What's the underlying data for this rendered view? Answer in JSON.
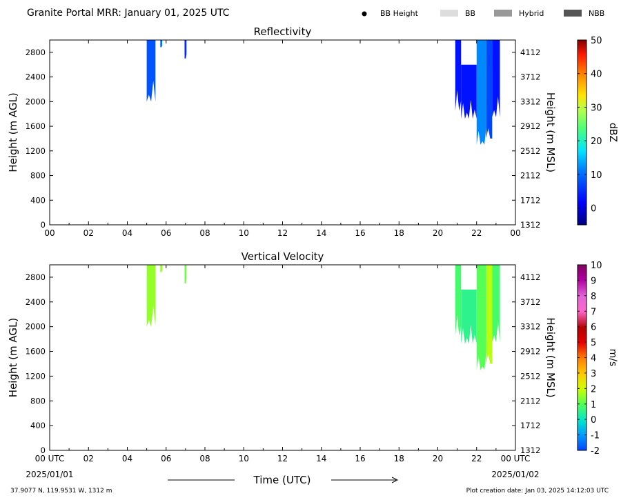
{
  "page_title": "Granite Portal MRR:  January 01, 2025 UTC",
  "legend": [
    {
      "label": "BB Height",
      "kind": "dot",
      "color": "#000000"
    },
    {
      "label": "BB",
      "kind": "swatch",
      "color": "#dddddd"
    },
    {
      "label": "Hybrid",
      "kind": "swatch",
      "color": "#999999"
    },
    {
      "label": "NBB",
      "kind": "swatch",
      "color": "#555555"
    }
  ],
  "footer": {
    "location": "37.9077 N, 119.9531 W, 1312 m",
    "creation": "Plot creation date: Jan 03, 2025 14:12:03 UTC",
    "xlabel": "Time (UTC)",
    "start_date": "2025/01/01",
    "end_date": "2025/01/02"
  },
  "chart_data": [
    {
      "type": "heatmap",
      "title": "Reflectivity",
      "ylabel": "Height (m AGL)",
      "ylabel_right": "Height (m MSL)",
      "x_ticks": [
        "00",
        "02",
        "04",
        "06",
        "08",
        "10",
        "12",
        "14",
        "16",
        "18",
        "20",
        "22",
        "00"
      ],
      "xlim_hours": [
        0,
        24
      ],
      "y_ticks": [
        0,
        400,
        800,
        1200,
        1600,
        2000,
        2400,
        2800
      ],
      "y_ticks_right": [
        1312,
        1712,
        2112,
        2512,
        2912,
        3312,
        3712,
        4112
      ],
      "ylim": [
        0,
        3000
      ],
      "colorbar": {
        "label": "dBZ",
        "ticks": [
          "50",
          "40",
          "30",
          "20",
          "10",
          "0"
        ],
        "range": [
          -5,
          50
        ]
      },
      "echo_regions": [
        {
          "start_hour": 5.0,
          "end_hour": 5.45,
          "bottom_m": 2000,
          "top_m": 3000,
          "value": 8
        },
        {
          "start_hour": 5.7,
          "end_hour": 5.8,
          "bottom_m": 2880,
          "top_m": 3000,
          "value": 10
        },
        {
          "start_hour": 6.95,
          "end_hour": 7.05,
          "bottom_m": 2700,
          "top_m": 3000,
          "value": 5
        },
        {
          "start_hour": 20.9,
          "end_hour": 21.2,
          "bottom_m": 1850,
          "top_m": 3000,
          "value": 3
        },
        {
          "start_hour": 21.2,
          "end_hour": 22.0,
          "bottom_m": 1720,
          "top_m": 2600,
          "value": 3
        },
        {
          "start_hour": 22.0,
          "end_hour": 22.5,
          "bottom_m": 1300,
          "top_m": 3000,
          "value": 12
        },
        {
          "start_hour": 22.5,
          "end_hour": 22.8,
          "bottom_m": 1400,
          "top_m": 3000,
          "value": 7
        },
        {
          "start_hour": 22.8,
          "end_hour": 23.2,
          "bottom_m": 1750,
          "top_m": 3000,
          "value": 3
        }
      ]
    },
    {
      "type": "heatmap",
      "title": "Vertical Velocity",
      "ylabel": "Height (m AGL)",
      "ylabel_right": "Height (m MSL)",
      "x_ticks": [
        "00 UTC",
        "02",
        "04",
        "06",
        "08",
        "10",
        "12",
        "14",
        "16",
        "18",
        "20",
        "22",
        "00 UTC"
      ],
      "xlim_hours": [
        0,
        24
      ],
      "y_ticks": [
        0,
        400,
        800,
        1200,
        1600,
        2000,
        2400,
        2800
      ],
      "y_ticks_right": [
        1312,
        1712,
        2112,
        2512,
        2912,
        3312,
        3712,
        4112
      ],
      "ylim": [
        0,
        3000
      ],
      "colorbar": {
        "label": "m/s",
        "ticks": [
          "10",
          "9",
          "8",
          "7",
          "6",
          "5",
          "4",
          "3",
          "2",
          "1",
          "0",
          "-1",
          "-2"
        ],
        "range": [
          -2,
          10
        ]
      },
      "echo_regions": [
        {
          "start_hour": 5.0,
          "end_hour": 5.45,
          "bottom_m": 2000,
          "top_m": 3000,
          "value": 1.5
        },
        {
          "start_hour": 5.7,
          "end_hour": 5.8,
          "bottom_m": 2880,
          "top_m": 3000,
          "value": 1.5
        },
        {
          "start_hour": 6.95,
          "end_hour": 7.05,
          "bottom_m": 2700,
          "top_m": 3000,
          "value": 1.2
        },
        {
          "start_hour": 20.9,
          "end_hour": 21.2,
          "bottom_m": 1850,
          "top_m": 3000,
          "value": 0.8
        },
        {
          "start_hour": 21.2,
          "end_hour": 22.0,
          "bottom_m": 1720,
          "top_m": 2600,
          "value": 0.5
        },
        {
          "start_hour": 22.0,
          "end_hour": 22.5,
          "bottom_m": 1300,
          "top_m": 3000,
          "value": 1.0
        },
        {
          "start_hour": 22.5,
          "end_hour": 22.8,
          "bottom_m": 1400,
          "top_m": 3000,
          "value": 1.8
        },
        {
          "start_hour": 22.8,
          "end_hour": 23.2,
          "bottom_m": 1750,
          "top_m": 3000,
          "value": 0.8
        }
      ]
    }
  ]
}
